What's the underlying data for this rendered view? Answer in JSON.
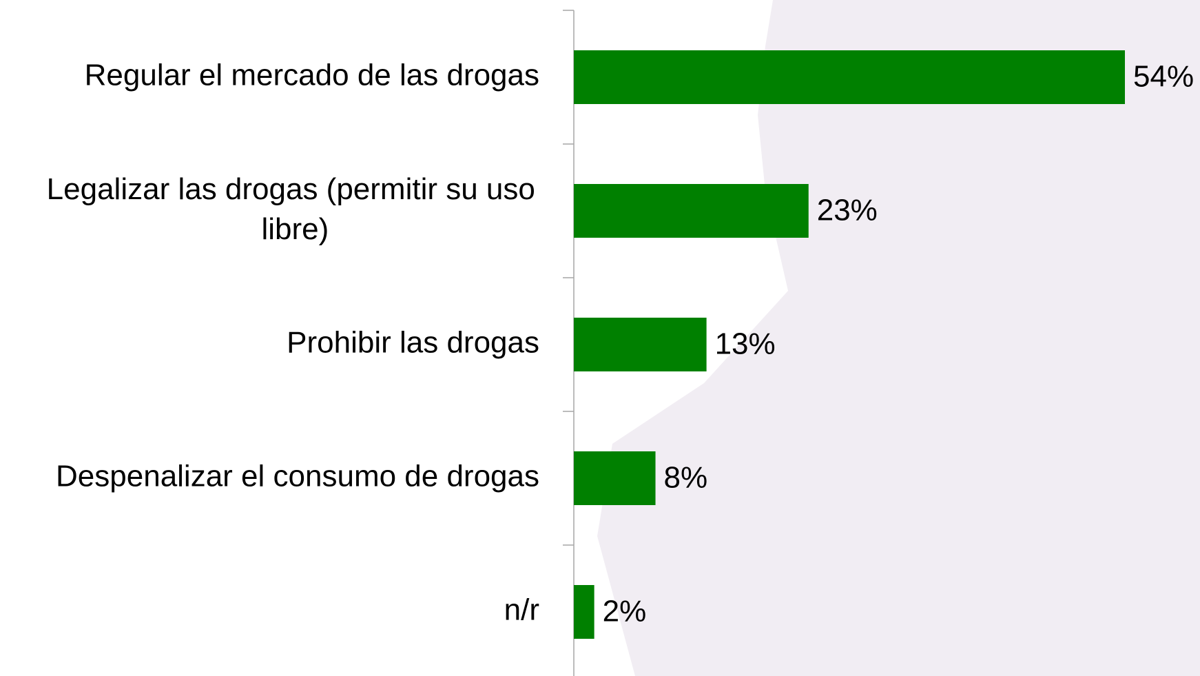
{
  "chart_data": {
    "type": "bar",
    "orientation": "horizontal",
    "categories": [
      "Regular el mercado de las drogas",
      "Legalizar las drogas (permitir su uso libre)",
      "Prohibir las drogas",
      "Despenalizar el consumo de drogas",
      "n/r"
    ],
    "values": [
      54,
      23,
      13,
      8,
      2
    ],
    "value_labels": [
      "54%",
      "23%",
      "13%",
      "8%",
      "2%"
    ],
    "color": "#008000"
  }
}
